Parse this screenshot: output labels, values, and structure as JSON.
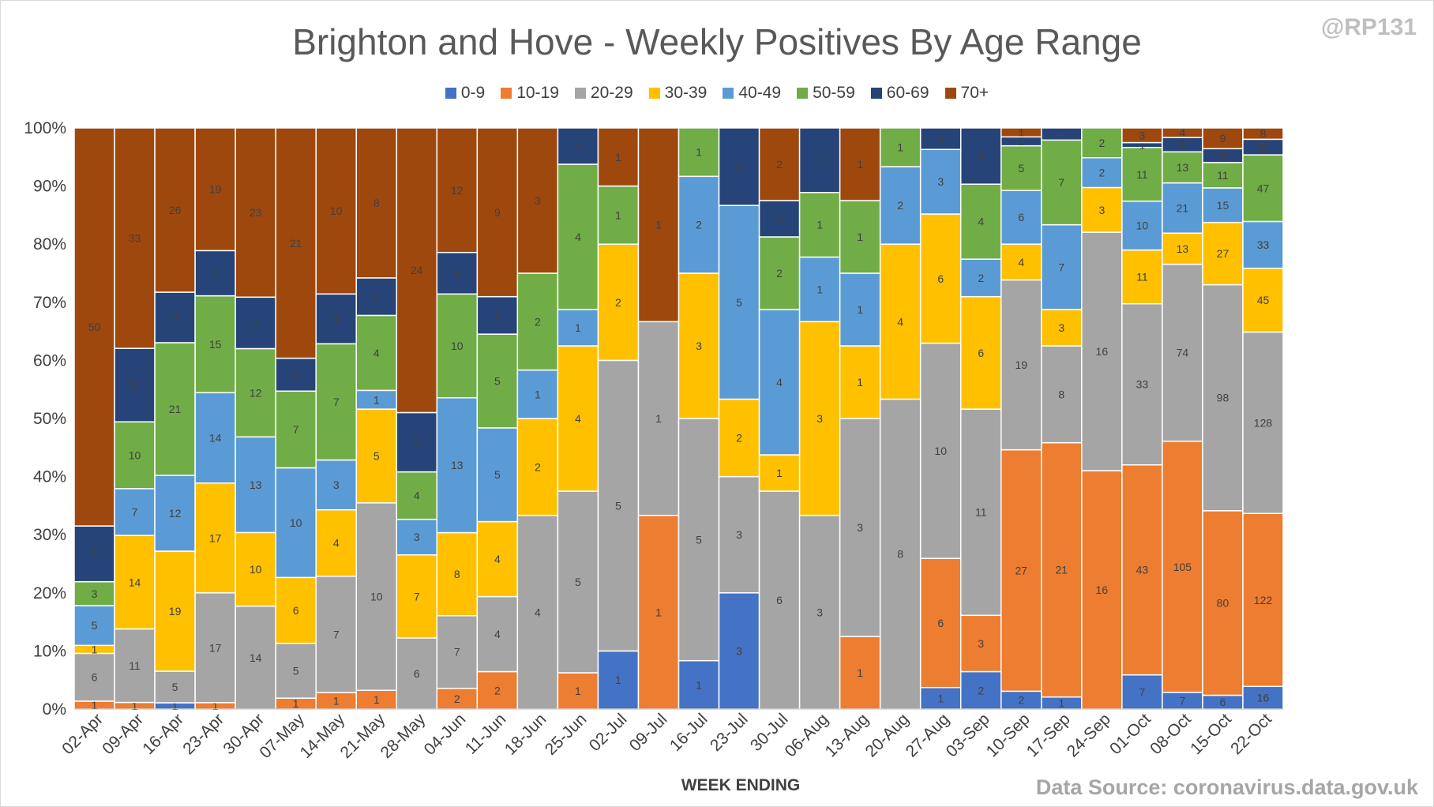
{
  "handle": "@RP131",
  "source": "Data Source: coronavirus.data.gov.uk",
  "chart_data": {
    "type": "bar",
    "stacked": true,
    "normalized": true,
    "title": "Brighton and Hove - Weekly Positives By Age Range",
    "xlabel": "WEEK ENDING",
    "ylabel": "",
    "ylim": [
      0,
      100
    ],
    "yticks": [
      "0%",
      "10%",
      "20%",
      "30%",
      "40%",
      "50%",
      "60%",
      "70%",
      "80%",
      "90%",
      "100%"
    ],
    "legend_position": "top",
    "categories": [
      "02-Apr",
      "09-Apr",
      "16-Apr",
      "23-Apr",
      "30-Apr",
      "07-May",
      "14-May",
      "21-May",
      "28-May",
      "04-Jun",
      "11-Jun",
      "18-Jun",
      "25-Jun",
      "02-Jul",
      "09-Jul",
      "16-Jul",
      "23-Jul",
      "30-Jul",
      "06-Aug",
      "13-Aug",
      "20-Aug",
      "27-Aug",
      "03-Sep",
      "10-Sep",
      "17-Sep",
      "24-Sep",
      "01-Oct",
      "08-Oct",
      "15-Oct",
      "22-Oct"
    ],
    "series": [
      {
        "name": "0-9",
        "color": "#4472c4",
        "values": [
          0,
          0,
          1,
          0,
          0,
          0,
          0,
          0,
          0,
          0,
          0,
          0,
          0,
          1,
          0,
          1,
          3,
          0,
          0,
          0,
          0,
          1,
          2,
          2,
          1,
          0,
          7,
          7,
          6,
          16
        ]
      },
      {
        "name": "10-19",
        "color": "#ed7d31",
        "values": [
          1,
          1,
          0,
          1,
          0,
          1,
          1,
          1,
          0,
          2,
          2,
          0,
          1,
          0,
          1,
          0,
          0,
          0,
          0,
          1,
          0,
          6,
          3,
          27,
          21,
          16,
          43,
          105,
          80,
          122
        ]
      },
      {
        "name": "20-29",
        "color": "#a5a5a5",
        "values": [
          6,
          11,
          5,
          17,
          14,
          5,
          7,
          10,
          6,
          7,
          4,
          4,
          5,
          5,
          1,
          5,
          3,
          6,
          3,
          3,
          8,
          10,
          11,
          19,
          8,
          16,
          33,
          74,
          98,
          128
        ]
      },
      {
        "name": "30-39",
        "color": "#ffc000",
        "values": [
          1,
          14,
          19,
          17,
          10,
          6,
          4,
          5,
          7,
          8,
          4,
          2,
          4,
          2,
          0,
          3,
          2,
          1,
          3,
          1,
          4,
          6,
          6,
          4,
          3,
          3,
          11,
          13,
          27,
          45
        ]
      },
      {
        "name": "40-49",
        "color": "#5b9bd5",
        "values": [
          5,
          7,
          12,
          14,
          13,
          10,
          3,
          1,
          3,
          13,
          5,
          1,
          1,
          0,
          0,
          2,
          5,
          4,
          1,
          1,
          2,
          3,
          2,
          6,
          7,
          2,
          10,
          21,
          15,
          33
        ]
      },
      {
        "name": "50-59",
        "color": "#70ad47",
        "values": [
          3,
          10,
          21,
          15,
          12,
          7,
          7,
          4,
          4,
          10,
          5,
          2,
          4,
          1,
          0,
          1,
          0,
          2,
          1,
          1,
          1,
          0,
          4,
          5,
          7,
          2,
          11,
          13,
          11,
          47
        ]
      },
      {
        "name": "60-69",
        "color": "#264478",
        "values": [
          7,
          11,
          8,
          7,
          7,
          3,
          3,
          2,
          5,
          4,
          2,
          0,
          1,
          0,
          0,
          0,
          2,
          1,
          1,
          0,
          0,
          1,
          3,
          1,
          1,
          0,
          1,
          6,
          6,
          11
        ]
      },
      {
        "name": "70+",
        "color": "#9e480e",
        "values": [
          50,
          33,
          26,
          19,
          23,
          21,
          10,
          8,
          24,
          12,
          9,
          3,
          0,
          1,
          1,
          0,
          0,
          2,
          0,
          1,
          0,
          0,
          0,
          1,
          0,
          0,
          3,
          4,
          9,
          8
        ]
      }
    ]
  }
}
